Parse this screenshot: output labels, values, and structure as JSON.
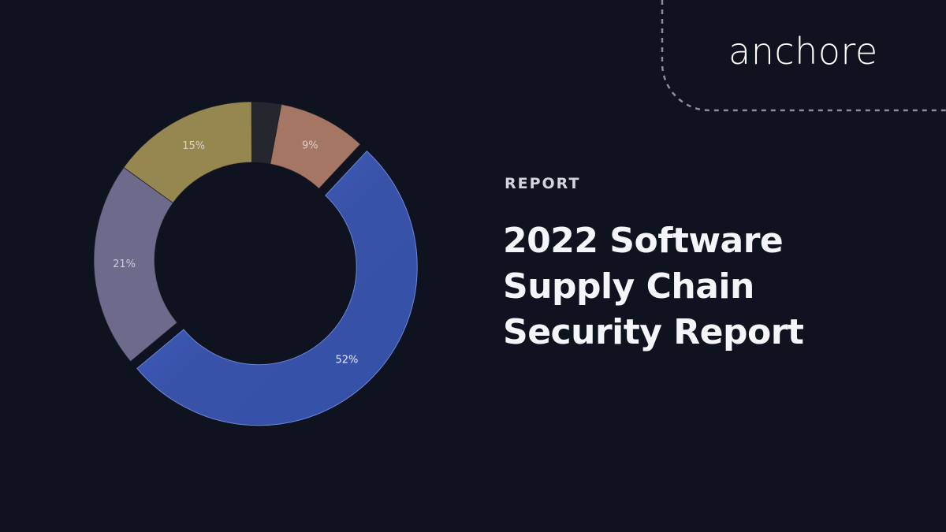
{
  "brand": {
    "logo_text": "anchore"
  },
  "header": {
    "eyebrow": "REPORT",
    "title_lines": [
      "2022 Software",
      "Supply Chain",
      "Security Report"
    ]
  },
  "colors": {
    "background": "#0f1320",
    "text": "#f4f5f8",
    "decor_dash": "#8a8f9c"
  },
  "chart_data": {
    "type": "pie",
    "donut": true,
    "slices": [
      {
        "label": "52%",
        "value": 52,
        "color": "#3a56b0",
        "exploded": true
      },
      {
        "label": "21%",
        "value": 21,
        "color": "#6e6a8c"
      },
      {
        "label": "15%",
        "value": 15,
        "color": "#968650"
      },
      {
        "label": "",
        "value": 3,
        "color": "#25272e"
      },
      {
        "label": "9%",
        "value": 9,
        "color": "#a47663"
      }
    ],
    "start_angle_deg": 43,
    "direction": "clockwise"
  }
}
